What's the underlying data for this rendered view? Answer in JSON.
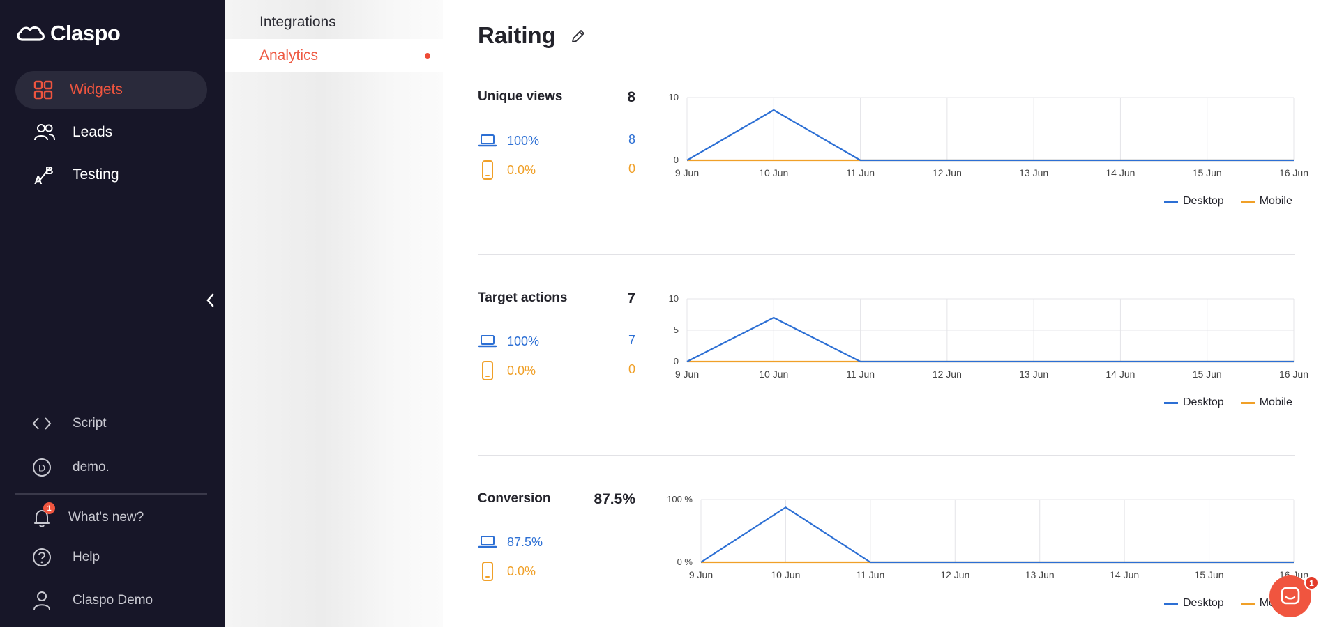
{
  "sidebar": {
    "brand": "Claspo",
    "nav": [
      {
        "label": "Widgets",
        "icon": "grid-icon",
        "active": true
      },
      {
        "label": "Leads",
        "icon": "users-icon",
        "active": false
      },
      {
        "label": "Testing",
        "icon": "ab-test-icon",
        "active": false
      }
    ],
    "bottom": {
      "script": "Script",
      "site": "demo.",
      "whats_new": "What's new?",
      "whats_new_badge": "1",
      "help": "Help",
      "user": "Claspo Demo"
    }
  },
  "submenu": {
    "items": [
      {
        "label": "Integrations",
        "active": false
      },
      {
        "label": "Analytics",
        "active": true
      }
    ]
  },
  "main": {
    "title": "Raiting"
  },
  "legend": {
    "desktop": "Desktop",
    "mobile": "Mobile"
  },
  "colors": {
    "desktop": "#2c6fd4",
    "mobile": "#f0a028",
    "accent": "#f0553f"
  },
  "chat_badge": "1",
  "sections": [
    {
      "name": "Unique views",
      "total": "8",
      "desktop_pct": "100%",
      "desktop_val": "8",
      "mobile_pct": "0.0%",
      "mobile_val": "0"
    },
    {
      "name": "Target actions",
      "total": "7",
      "desktop_pct": "100%",
      "desktop_val": "7",
      "mobile_pct": "0.0%",
      "mobile_val": "0"
    },
    {
      "name": "Conversion",
      "total": "87.5%",
      "desktop_pct": "87.5%",
      "desktop_val": "",
      "mobile_pct": "0.0%",
      "mobile_val": ""
    }
  ],
  "chart_data": [
    {
      "type": "line",
      "x": [
        "9 Jun",
        "10 Jun",
        "11 Jun",
        "12 Jun",
        "13 Jun",
        "14 Jun",
        "15 Jun",
        "16 Jun"
      ],
      "y_ticks": [
        "0",
        "10"
      ],
      "ylim": [
        0,
        10
      ],
      "series": [
        {
          "name": "Desktop",
          "values": [
            0,
            8,
            0,
            0,
            0,
            0,
            0,
            0
          ]
        },
        {
          "name": "Mobile",
          "values": [
            0,
            0,
            0,
            0,
            0,
            0,
            0,
            0
          ]
        }
      ],
      "grid": true,
      "legend": "bottom-right"
    },
    {
      "type": "line",
      "x": [
        "9 Jun",
        "10 Jun",
        "11 Jun",
        "12 Jun",
        "13 Jun",
        "14 Jun",
        "15 Jun",
        "16 Jun"
      ],
      "y_ticks": [
        "0",
        "5",
        "10"
      ],
      "ylim": [
        0,
        10
      ],
      "series": [
        {
          "name": "Desktop",
          "values": [
            0,
            7,
            0,
            0,
            0,
            0,
            0,
            0
          ]
        },
        {
          "name": "Mobile",
          "values": [
            0,
            0,
            0,
            0,
            0,
            0,
            0,
            0
          ]
        }
      ],
      "grid": true,
      "legend": "bottom-right"
    },
    {
      "type": "line",
      "x": [
        "9 Jun",
        "10 Jun",
        "11 Jun",
        "12 Jun",
        "13 Jun",
        "14 Jun",
        "15 Jun",
        "16 Jun"
      ],
      "y_ticks": [
        "0 %",
        "100 %"
      ],
      "ylim": [
        0,
        100
      ],
      "series": [
        {
          "name": "Desktop",
          "values": [
            0,
            87.5,
            0,
            0,
            0,
            0,
            0,
            0
          ]
        },
        {
          "name": "Mobile",
          "values": [
            0,
            0,
            0,
            0,
            0,
            0,
            0,
            0
          ]
        }
      ],
      "grid": true,
      "legend": "bottom-right"
    }
  ]
}
